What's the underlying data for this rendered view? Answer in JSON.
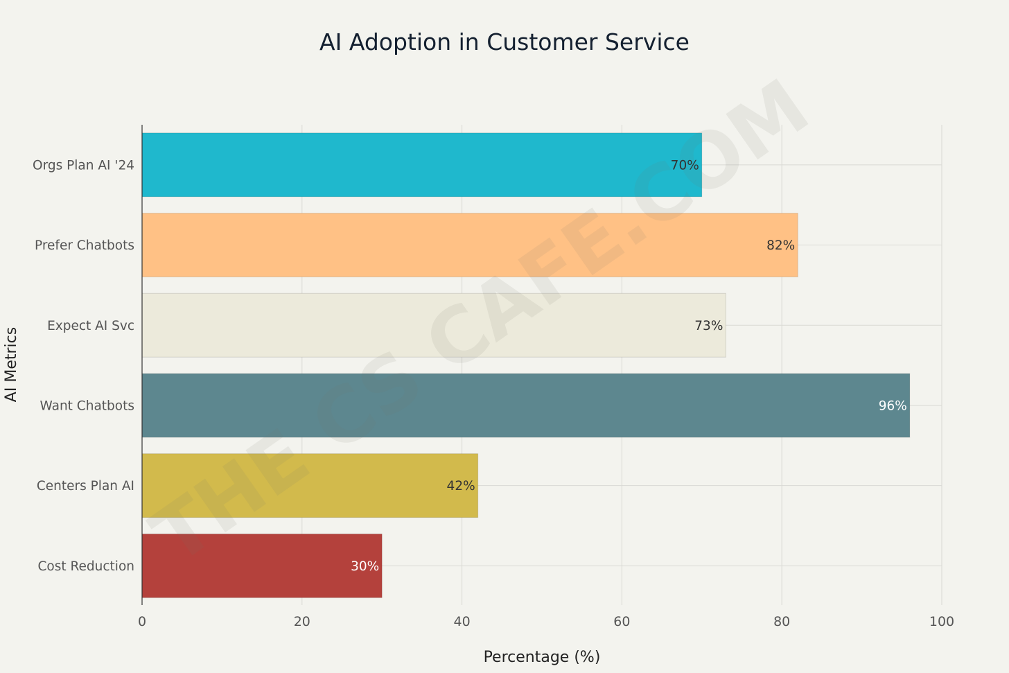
{
  "watermark": "THE CS CAFE.COM",
  "chart_data": {
    "type": "bar",
    "orientation": "horizontal",
    "title": "AI Adoption in Customer Service",
    "xlabel": "Percentage (%)",
    "ylabel": "AI Metrics",
    "xlim": [
      0,
      100
    ],
    "xticks": [
      0,
      20,
      40,
      60,
      80,
      100
    ],
    "grid": true,
    "categories": [
      "Orgs Plan AI '24",
      "Prefer Chatbots",
      "Expect AI Svc",
      "Want Chatbots",
      "Centers Plan AI",
      "Cost Reduction"
    ],
    "values": [
      70,
      82,
      73,
      96,
      42,
      30
    ],
    "data_labels": [
      "70%",
      "82%",
      "73%",
      "96%",
      "42%",
      "30%"
    ],
    "colors": [
      "#1fb8cd",
      "#ffc185",
      "#eceadb",
      "#5d878f",
      "#d2ba4c",
      "#b4413c"
    ],
    "label_colors": [
      "#333333",
      "#333333",
      "#333333",
      "#ffffff",
      "#333333",
      "#ffffff"
    ]
  }
}
